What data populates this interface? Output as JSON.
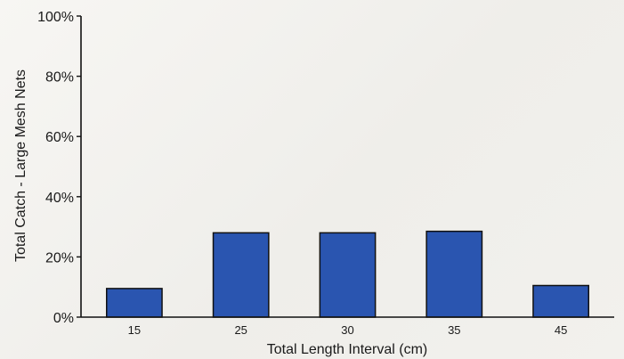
{
  "chart_data": {
    "type": "bar",
    "xlabel": "Total Length Interval (cm)",
    "ylabel": "Total Catch - Large Mesh Nets",
    "categories": [
      "15",
      "25",
      "30",
      "35",
      "45"
    ],
    "values": [
      9.5,
      28,
      28,
      28.5,
      10.5
    ],
    "ylim": [
      0,
      100
    ],
    "yticks": [
      "0%",
      "20%",
      "40%",
      "60%",
      "80%",
      "100%"
    ],
    "grid": false,
    "legend": "none",
    "bar_color": "#2a55b0",
    "bar_edge_color": "#111111"
  }
}
